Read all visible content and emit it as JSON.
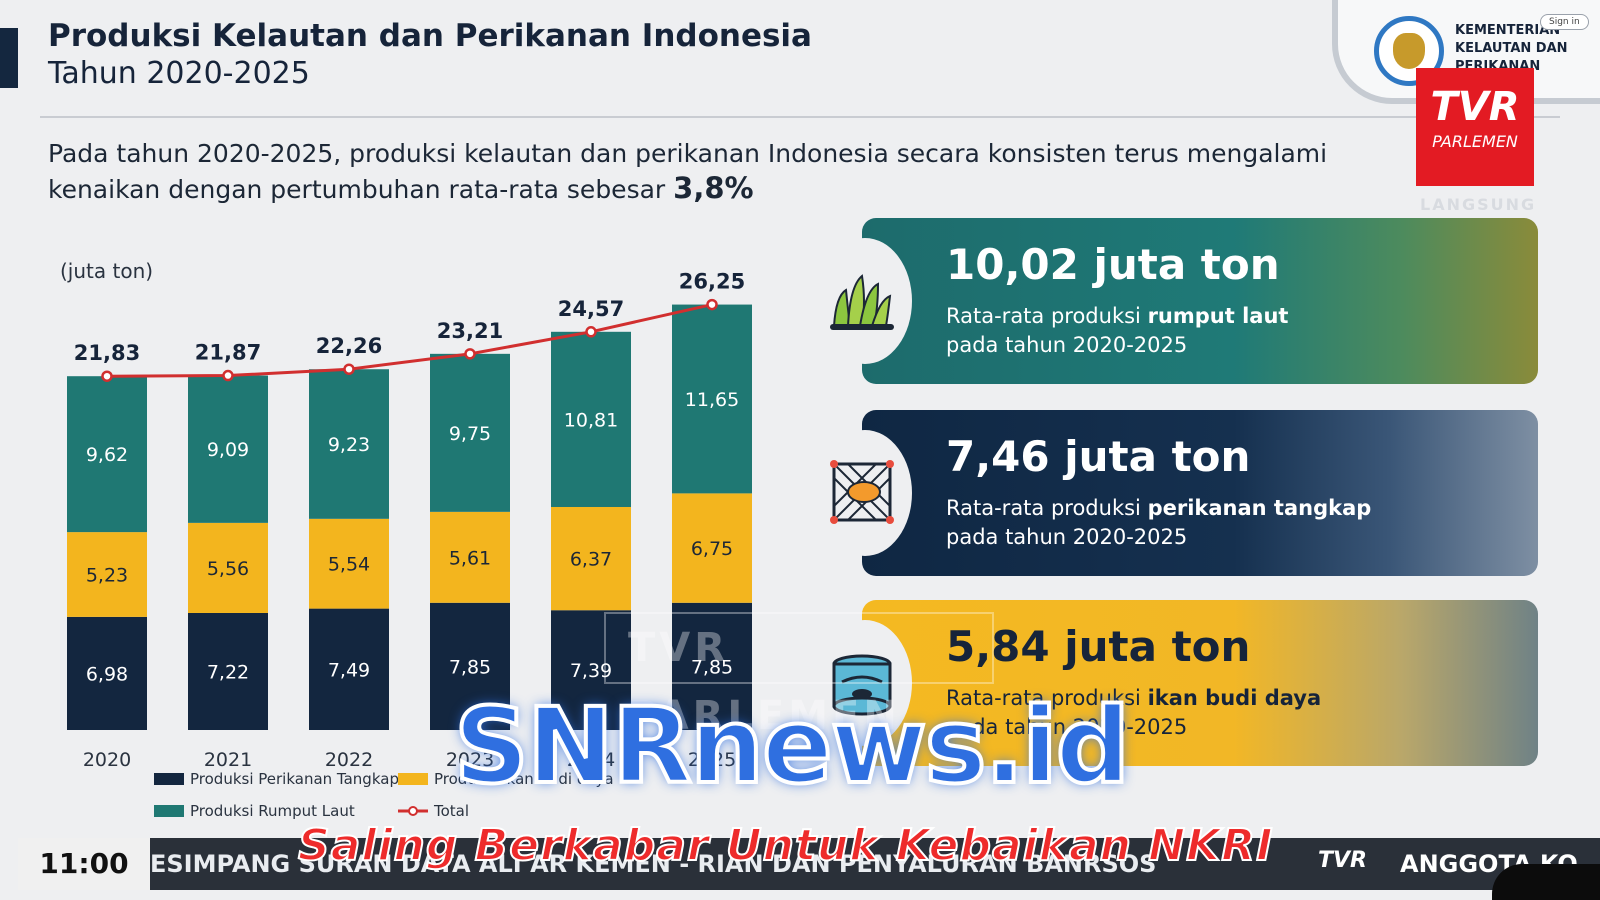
{
  "header": {
    "title": "Produksi Kelautan dan Perikanan Indonesia",
    "subtitle": "Tahun 2020-2025",
    "intro_text": "Pada tahun 2020-2025, produksi kelautan dan perikanan Indonesia secara konsisten terus mengalami kenaikan dengan pertumbuhan rata-rata sebesar",
    "intro_growth": "3,8%"
  },
  "branding": {
    "ministry_name": "KEMENTERIAN KELAUTAN DAN PERIKANAN",
    "sign_in": "Sign in",
    "channel_logo": "TVR",
    "channel_sub": "PARLEMEN",
    "live_label": "LANGSUNG",
    "emblem_icon": "garuda-emblem-icon"
  },
  "chart_data": {
    "type": "bar",
    "stacked": true,
    "unit_label": "(juta ton)",
    "categories": [
      "2020",
      "2021",
      "2022",
      "2023",
      "2024",
      "2025"
    ],
    "series": [
      {
        "name": "Produksi Perikanan Tangkap",
        "color": "#13263f",
        "values": [
          6.98,
          7.22,
          7.49,
          7.85,
          7.39,
          7.85
        ],
        "labels": [
          "6,98",
          "7,22",
          "7,49",
          "7,85",
          "7,39",
          "7,85"
        ]
      },
      {
        "name": "Produksi Ikan Budi daya",
        "color": "#f3b51e",
        "values": [
          5.23,
          5.56,
          5.54,
          5.61,
          6.37,
          6.75
        ],
        "labels": [
          "5,23",
          "5,56",
          "5,54",
          "5,61",
          "6,37",
          "6,75"
        ]
      },
      {
        "name": "Produksi Rumput Laut",
        "color": "#1f7873",
        "values": [
          9.62,
          9.09,
          9.23,
          9.75,
          10.81,
          11.65
        ],
        "labels": [
          "9,62",
          "9,09",
          "9,23",
          "9,75",
          "10,81",
          "11,65"
        ]
      }
    ],
    "total": {
      "name": "Total",
      "color": "#d12f2f",
      "values": [
        21.83,
        21.87,
        22.26,
        23.21,
        24.57,
        26.25
      ],
      "labels": [
        "21,83",
        "21,87",
        "22,26",
        "23,21",
        "24,57",
        "26,25"
      ]
    },
    "ylim": [
      0,
      29
    ],
    "legend_placement": "bottom",
    "grid": false
  },
  "cards": [
    {
      "value": "10,02 juta ton",
      "desc_prefix": "Rata-rata produksi",
      "desc_bold": "rumput laut",
      "desc_suffix": "pada tahun 2020-2025",
      "icon": "seaweed-icon"
    },
    {
      "value": "7,46 juta ton",
      "desc_prefix": "Rata-rata produksi",
      "desc_bold": "perikanan tangkap",
      "desc_suffix": "pada tahun 2020-2025",
      "icon": "fishing-net-icon"
    },
    {
      "value": "5,84 juta ton",
      "desc_prefix": "Rata-rata produksi",
      "desc_bold": "ikan budi daya",
      "desc_suffix": "pada tahun 2020-2025",
      "icon": "fish-pond-icon"
    }
  ],
  "broadcast": {
    "time": "11:00",
    "ticker": "ESIMPANG SURAN DATA ALI AR KEMEN - RIAN DAN PENYALURAN BANRSOS",
    "ticker_right": "ANGGOTA KO",
    "ticker_logo": "TVR"
  },
  "watermark": {
    "overlay": "TVR PARLEMEN",
    "site": "SNRnews.id",
    "tagline": "Saling Berkabar Untuk Kebaikan NKRI"
  }
}
